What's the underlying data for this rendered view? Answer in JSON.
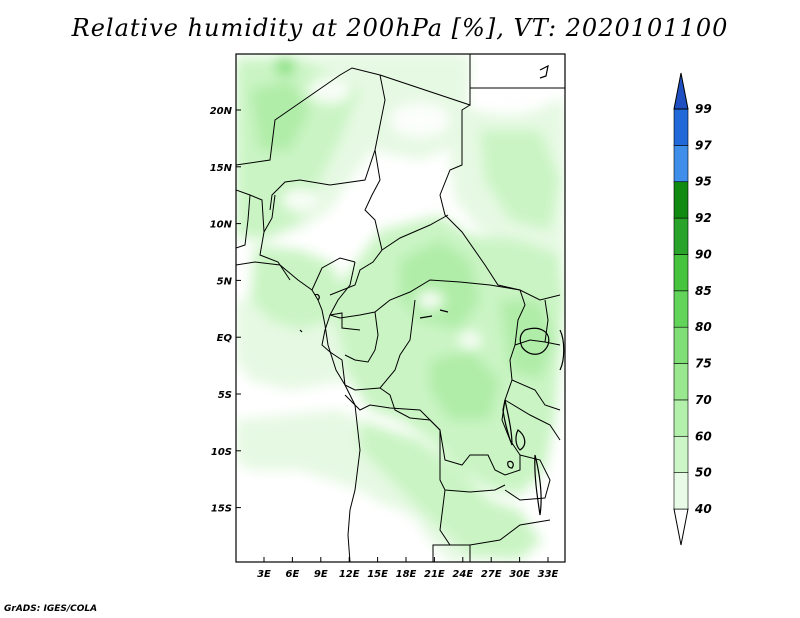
{
  "title": "Relative humidity at 200hPa [%], VT: 2020101100",
  "footer": "GrADS: IGES/COLA",
  "map": {
    "lat_ticks": [
      "20N",
      "15N",
      "10N",
      "5N",
      "EQ",
      "5S",
      "10S",
      "15S"
    ],
    "lon_ticks": [
      "3E",
      "6E",
      "9E",
      "12E",
      "15E",
      "18E",
      "21E",
      "24E",
      "27E",
      "30E",
      "33E"
    ]
  },
  "colorbar": {
    "levels": [
      "40",
      "50",
      "60",
      "70",
      "75",
      "80",
      "85",
      "90",
      "92",
      "95",
      "97",
      "99"
    ],
    "colors": [
      "#ffffff",
      "#e8fbe6",
      "#cdf6c8",
      "#b3f0ac",
      "#99e890",
      "#7fdf76",
      "#63d45a",
      "#47c43e",
      "#2aa32a",
      "#118a11",
      "#3f8fea",
      "#2168d8",
      "#1f4fc0"
    ]
  }
}
